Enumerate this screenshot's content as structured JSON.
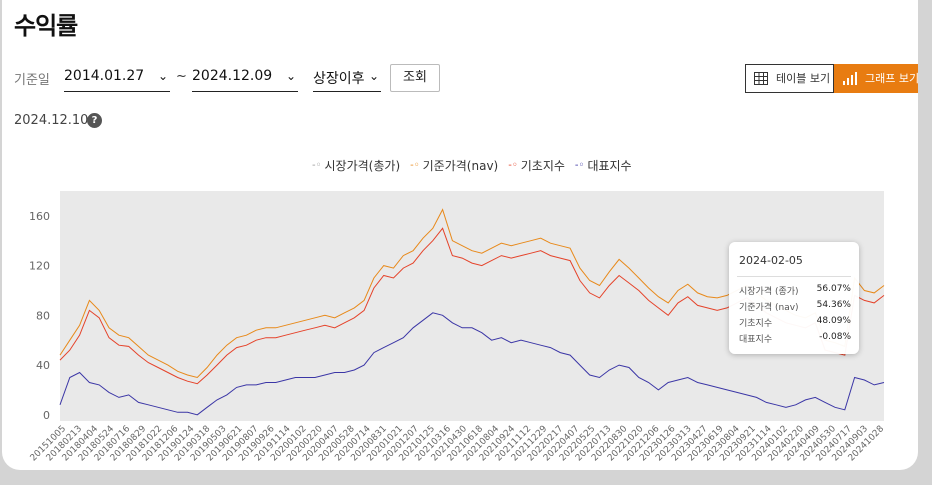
{
  "page": {
    "title": "수익률"
  },
  "filter": {
    "base_label": "기준일",
    "start_date": "2014.01.27",
    "tilde": "~",
    "end_date": "2024.12.09",
    "period": "상장이후",
    "query_button": "조회"
  },
  "view_toggle": {
    "table_label": "테이블 보기",
    "graph_label": "그래프 보기",
    "active": "graph"
  },
  "as_of": {
    "date": "2024.12.10",
    "help": "?"
  },
  "legend": [
    {
      "label": "시장가격(총가)",
      "color": "#9a9a9a"
    },
    {
      "label": "기준가격(nav)",
      "color": "#e8891a"
    },
    {
      "label": "기초지수",
      "color": "#e5432a"
    },
    {
      "label": "대표지수",
      "color": "#3b36a6"
    }
  ],
  "tooltip": {
    "date": "2024-02-05",
    "rows": [
      {
        "label": "시장가격 (종가)",
        "value": "56.07%"
      },
      {
        "label": "기준가격 (nav)",
        "value": "54.36%"
      },
      {
        "label": "기초지수",
        "value": "48.09%"
      },
      {
        "label": "대표지수",
        "value": "-0.08%"
      }
    ]
  },
  "chart_data": {
    "type": "line",
    "ylim": [
      -5,
      180
    ],
    "yticks": [
      "0",
      "40",
      "80",
      "120",
      "160"
    ],
    "x_labels": [
      "20151005",
      "20180213",
      "20180404",
      "20180524",
      "20180716",
      "20180829",
      "20181022",
      "20181206",
      "20190124",
      "20190318",
      "20190503",
      "20190621",
      "20190807",
      "20190926",
      "20191114",
      "20200102",
      "20200220",
      "20200407",
      "20200528",
      "20200714",
      "20200831",
      "20201021",
      "20201207",
      "20210125",
      "20210316",
      "20210430",
      "20210618",
      "20210804",
      "20210924",
      "20211112",
      "20211229",
      "20220217",
      "20220407",
      "20220525",
      "20220713",
      "20220830",
      "20221020",
      "20221206",
      "20230126",
      "20230313",
      "20230427",
      "20230619",
      "20230804",
      "20230921",
      "20231114",
      "20240102",
      "20240220",
      "20240409",
      "20240530",
      "20240717",
      "20240903",
      "20241028"
    ],
    "series": [
      {
        "name": "기준가격(nav)",
        "color": "#e8891a",
        "values": [
          48,
          60,
          72,
          92,
          84,
          70,
          64,
          62,
          55,
          48,
          44,
          40,
          35,
          32,
          30,
          38,
          48,
          56,
          62,
          64,
          68,
          70,
          70,
          72,
          74,
          76,
          78,
          80,
          78,
          82,
          86,
          92,
          110,
          120,
          118,
          128,
          132,
          142,
          150,
          165,
          140,
          136,
          132,
          130,
          134,
          138,
          136,
          138,
          140,
          142,
          138,
          136,
          134,
          118,
          108,
          104,
          115,
          125,
          118,
          110,
          102,
          95,
          90,
          100,
          105,
          98,
          95,
          94,
          96,
          100,
          104,
          98,
          92,
          88,
          84,
          80,
          78,
          82,
          60,
          58,
          55,
          110,
          100,
          98,
          104
        ]
      },
      {
        "name": "기초지수",
        "color": "#e5432a",
        "values": [
          44,
          52,
          64,
          84,
          78,
          62,
          56,
          55,
          48,
          42,
          38,
          34,
          30,
          27,
          25,
          32,
          40,
          48,
          54,
          56,
          60,
          62,
          62,
          64,
          66,
          68,
          70,
          72,
          70,
          74,
          78,
          84,
          102,
          112,
          110,
          118,
          122,
          132,
          140,
          150,
          128,
          126,
          122,
          120,
          124,
          128,
          126,
          128,
          130,
          132,
          128,
          126,
          124,
          108,
          98,
          94,
          104,
          112,
          106,
          100,
          92,
          86,
          80,
          90,
          95,
          88,
          86,
          84,
          86,
          90,
          94,
          88,
          82,
          78,
          74,
          72,
          70,
          74,
          52,
          50,
          48,
          96,
          92,
          90,
          96
        ]
      },
      {
        "name": "대표지수",
        "color": "#3b36a6",
        "values": [
          8,
          30,
          34,
          26,
          24,
          18,
          14,
          16,
          10,
          8,
          6,
          4,
          2,
          2,
          0,
          6,
          12,
          16,
          22,
          24,
          24,
          26,
          26,
          28,
          30,
          30,
          30,
          32,
          34,
          34,
          36,
          40,
          50,
          54,
          58,
          62,
          70,
          76,
          82,
          80,
          74,
          70,
          70,
          66,
          60,
          62,
          58,
          60,
          58,
          56,
          54,
          50,
          48,
          40,
          32,
          30,
          36,
          40,
          38,
          30,
          26,
          20,
          26,
          28,
          30,
          26,
          24,
          22,
          20,
          18,
          16,
          14,
          10,
          8,
          6,
          8,
          12,
          14,
          10,
          6,
          4,
          30,
          28,
          24,
          26
        ]
      }
    ]
  }
}
